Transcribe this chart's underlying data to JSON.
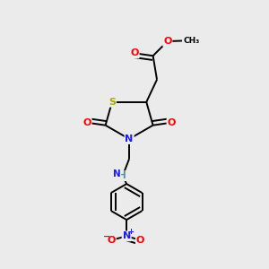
{
  "bg_color": "#ebebeb",
  "atom_colors": {
    "C": "#000000",
    "H": "#4a9a8a",
    "N": "#1a1aff",
    "O": "#ff0000",
    "S": "#aaaa00"
  },
  "bond_color": "#000000",
  "bond_width": 1.4
}
